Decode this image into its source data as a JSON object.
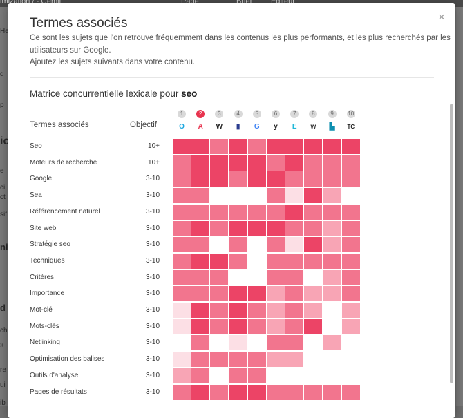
{
  "background": {
    "top_items": [
      {
        "text": "imization / - Gemji"
      },
      {
        "text": "Page"
      },
      {
        "text": "Brief"
      },
      {
        "text": "Éditeur"
      }
    ],
    "left_letters": [
      "He",
      "q",
      "p",
      "ic",
      "e",
      "ci",
      "ct",
      "sif",
      "ni",
      "d",
      "ch",
      "»",
      "re",
      "ui",
      "ib"
    ]
  },
  "modal": {
    "title": "Termes associés",
    "close_glyph": "×",
    "description_lines": [
      "Ce sont les sujets que l'on retrouve fréquemment dans les contenus les plus performants, et les plus recherchés par les",
      "utilisateurs sur Google.",
      "Ajoutez les sujets suivants dans votre contenu."
    ],
    "subtitle_prefix": "Matrice concurrentielle lexicale pour",
    "subtitle_keyword": "seo",
    "columns": {
      "terms": "Termes associés",
      "objective": "Objectif"
    },
    "sites": [
      {
        "rank": "1",
        "icon": "circle-o-icon",
        "glyph": "O",
        "color": "#1aa7e0",
        "active": false
      },
      {
        "rank": "2",
        "icon": "red-a-icon",
        "glyph": "A",
        "color": "#e8344f",
        "active": true
      },
      {
        "rank": "3",
        "icon": "wikipedia-icon",
        "glyph": "W",
        "color": "#222222",
        "active": false
      },
      {
        "rank": "4",
        "icon": "flag-icon",
        "glyph": "▮",
        "color": "#2b3d8f",
        "active": false
      },
      {
        "rank": "5",
        "icon": "google-g-icon",
        "glyph": "G",
        "color": "#4285f4",
        "active": false
      },
      {
        "rank": "6",
        "icon": "yoast-y-icon",
        "glyph": "y",
        "color": "#222222",
        "active": false
      },
      {
        "rank": "7",
        "icon": "e-logo-icon",
        "glyph": "E",
        "color": "#20b8d8",
        "active": false
      },
      {
        "rank": "8",
        "icon": "wordpress-w-icon",
        "glyph": "w",
        "color": "#333333",
        "active": false
      },
      {
        "rank": "9",
        "icon": "teal-square-icon",
        "glyph": "▙",
        "color": "#0e8fb0",
        "active": false
      },
      {
        "rank": "10",
        "icon": "tc-logo-icon",
        "glyph": "TC",
        "color": "#222222",
        "active": false
      }
    ],
    "heat_colors": [
      "#ffffff",
      "#fcdfe5",
      "#f8a5b5",
      "#f2758e",
      "#ec4466"
    ],
    "rows": [
      {
        "term": "Seo",
        "objective": "10+",
        "levels": [
          4,
          4,
          3,
          4,
          3,
          4,
          4,
          4,
          4,
          4
        ]
      },
      {
        "term": "Moteurs de recherche",
        "objective": "10+",
        "levels": [
          3,
          4,
          4,
          4,
          4,
          3,
          4,
          3,
          3,
          3
        ]
      },
      {
        "term": "Google",
        "objective": "3-10",
        "levels": [
          3,
          4,
          4,
          3,
          4,
          4,
          3,
          3,
          3,
          3
        ]
      },
      {
        "term": "Sea",
        "objective": "3-10",
        "levels": [
          3,
          3,
          0,
          0,
          0,
          3,
          1,
          4,
          2,
          0
        ]
      },
      {
        "term": "Référencement naturel",
        "objective": "3-10",
        "levels": [
          3,
          3,
          3,
          3,
          3,
          3,
          4,
          3,
          3,
          3
        ]
      },
      {
        "term": "Site web",
        "objective": "3-10",
        "levels": [
          3,
          4,
          3,
          4,
          4,
          4,
          3,
          3,
          2,
          3
        ]
      },
      {
        "term": "Stratégie seo",
        "objective": "3-10",
        "levels": [
          3,
          3,
          0,
          3,
          0,
          3,
          1,
          4,
          2,
          3
        ]
      },
      {
        "term": "Techniques",
        "objective": "3-10",
        "levels": [
          3,
          4,
          4,
          3,
          0,
          3,
          3,
          3,
          3,
          3
        ]
      },
      {
        "term": "Critères",
        "objective": "3-10",
        "levels": [
          3,
          3,
          3,
          0,
          0,
          3,
          3,
          0,
          2,
          3
        ]
      },
      {
        "term": "Importance",
        "objective": "3-10",
        "levels": [
          3,
          3,
          3,
          4,
          4,
          2,
          3,
          2,
          2,
          3
        ]
      },
      {
        "term": "Mot-clé",
        "objective": "3-10",
        "levels": [
          1,
          4,
          3,
          4,
          3,
          2,
          3,
          2,
          0,
          2
        ]
      },
      {
        "term": "Mots-clés",
        "objective": "3-10",
        "levels": [
          1,
          4,
          3,
          4,
          3,
          2,
          3,
          4,
          0,
          2
        ]
      },
      {
        "term": "Netlinking",
        "objective": "3-10",
        "levels": [
          0,
          3,
          0,
          1,
          0,
          3,
          3,
          0,
          2,
          0
        ]
      },
      {
        "term": "Optimisation des balises",
        "objective": "3-10",
        "levels": [
          1,
          3,
          3,
          3,
          3,
          2,
          2,
          0,
          0,
          0
        ]
      },
      {
        "term": "Outils d'analyse",
        "objective": "3-10",
        "levels": [
          2,
          3,
          0,
          3,
          3,
          0,
          0,
          0,
          0,
          0
        ]
      },
      {
        "term": "Pages de résultats",
        "objective": "3-10",
        "levels": [
          3,
          4,
          3,
          4,
          4,
          3,
          3,
          3,
          3,
          3
        ]
      }
    ]
  }
}
